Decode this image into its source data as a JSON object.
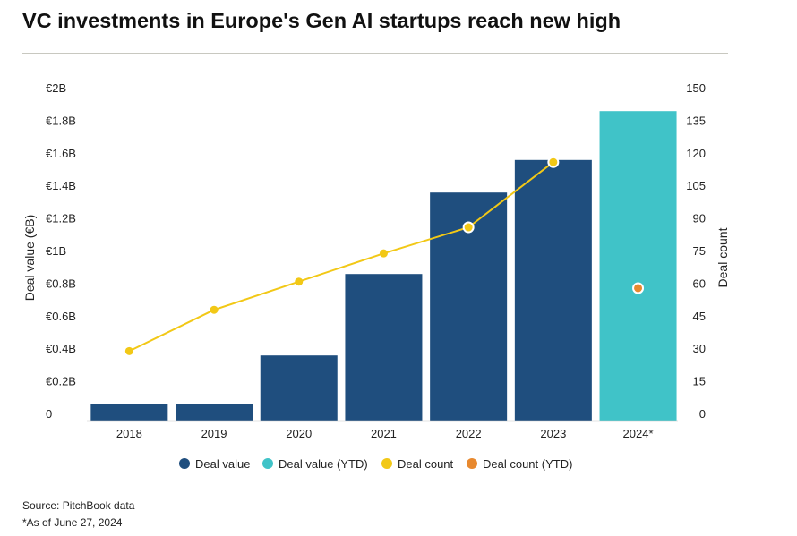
{
  "chart_data": {
    "type": "bar",
    "title": "VC investments in Europe's Gen AI startups reach new high",
    "categories": [
      "2018",
      "2019",
      "2020",
      "2021",
      "2022",
      "2023",
      "2024*"
    ],
    "series": [
      {
        "name": "Deal value",
        "axis": "left",
        "type": "bar",
        "color": "#1f4e7e",
        "values": [
          0.1,
          0.1,
          0.4,
          0.9,
          1.4,
          1.6,
          null
        ]
      },
      {
        "name": "Deal value (YTD)",
        "axis": "left",
        "type": "bar",
        "color": "#40c3c8",
        "values": [
          null,
          null,
          null,
          null,
          null,
          null,
          1.9
        ]
      },
      {
        "name": "Deal count",
        "axis": "right",
        "type": "line",
        "color": "#f2c816",
        "values": [
          32,
          51,
          64,
          77,
          89,
          119,
          null
        ]
      },
      {
        "name": "Deal count (YTD)",
        "axis": "right",
        "type": "point",
        "color": "#e8892f",
        "values": [
          null,
          null,
          null,
          null,
          null,
          null,
          61
        ]
      }
    ],
    "ylabel": "Deal value (€B)",
    "ylabel_right": "Deal count",
    "ylim": [
      0,
      2
    ],
    "ylim_right": [
      0,
      150
    ],
    "yticks": [
      "0",
      "€0.2B",
      "€0.4B",
      "€0.6B",
      "€0.8B",
      "€1B",
      "€1.2B",
      "€1.4B",
      "€1.6B",
      "€1.8B",
      "€2B"
    ],
    "yticks_right": [
      "0",
      "15",
      "30",
      "45",
      "60",
      "75",
      "90",
      "105",
      "120",
      "135",
      "150"
    ],
    "legend_position": "bottom",
    "grid": false
  },
  "footer": {
    "source": "Source: PitchBook data",
    "note": "*As of June 27, 2024"
  }
}
